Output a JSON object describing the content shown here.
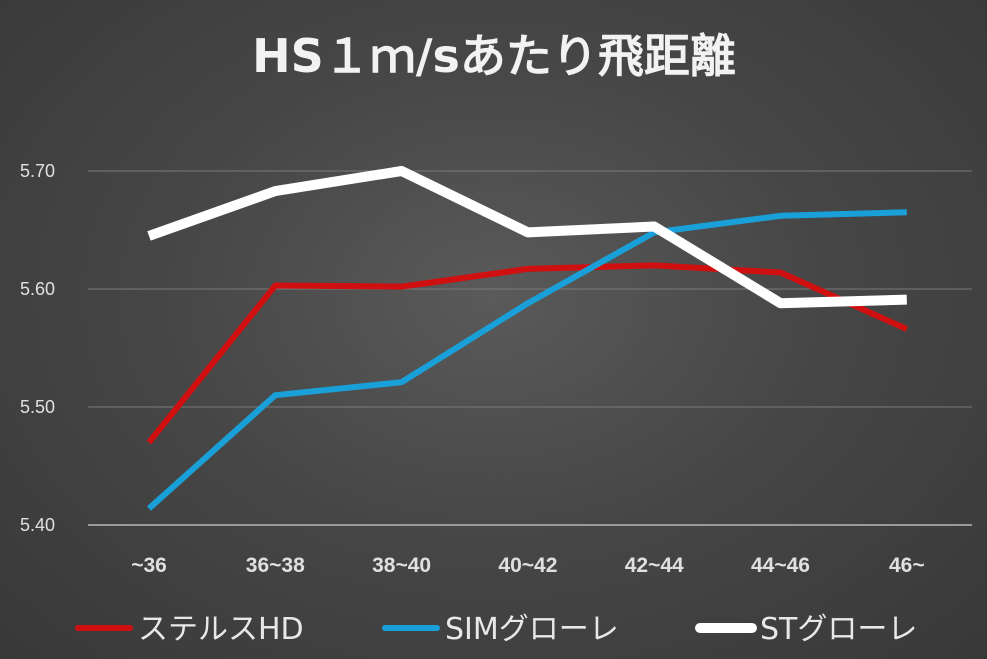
{
  "chart_data": {
    "type": "line",
    "title": "HS１ｍ/sあたり飛距離",
    "xlabel": "",
    "ylabel": "",
    "categories": [
      "~36",
      "36~38",
      "38~40",
      "40~42",
      "42~44",
      "44~46",
      "46~"
    ],
    "ylim": [
      5.4,
      5.7
    ],
    "yticks": [
      "5.40",
      "5.50",
      "5.60",
      "5.70"
    ],
    "ytick_values": [
      5.4,
      5.5,
      5.6,
      5.7
    ],
    "grid": true,
    "legend_position": "bottom",
    "series": [
      {
        "name": "ステルスHD",
        "color": "#d01010",
        "values": [
          5.47,
          5.603,
          5.602,
          5.617,
          5.62,
          5.614,
          5.566
        ]
      },
      {
        "name": "SIMグローレ",
        "color": "#1aa0d8",
        "values": [
          5.414,
          5.51,
          5.521,
          5.588,
          5.648,
          5.662,
          5.665
        ]
      },
      {
        "name": "STグローレ",
        "color": "#ffffff",
        "values": [
          5.645,
          5.683,
          5.7,
          5.648,
          5.653,
          5.588,
          5.591
        ]
      }
    ]
  }
}
